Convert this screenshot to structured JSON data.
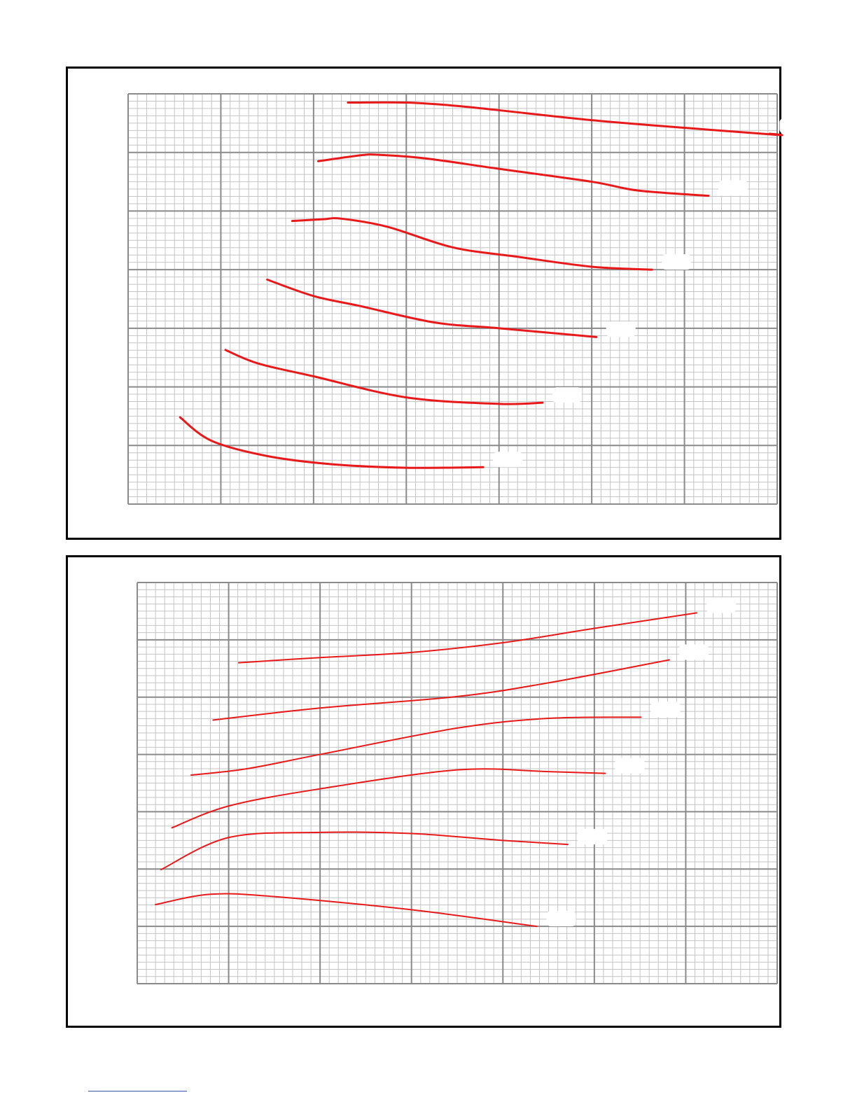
{
  "page": {
    "background": "#ffffff",
    "panel_border_color": "#000000",
    "grid_minor_color": "#c4c4c4",
    "grid_major_color": "#8a8a8a",
    "curve_color": "#e8191a",
    "footer_rule_color": "#3b4ea8"
  },
  "chart_data": [
    {
      "type": "line",
      "title": "",
      "xlabel": "",
      "ylabel": "",
      "xlim": [
        0,
        70
      ],
      "ylim": [
        0,
        7
      ],
      "x_major_step": 10,
      "y_major_step": 1,
      "minor_divisions_x": 10,
      "minor_divisions_y": 8,
      "grid": true,
      "series": [
        {
          "label": "",
          "x": [
            23.7,
            30,
            35,
            40,
            50,
            60,
            70,
            69.2
          ],
          "y": [
            6.85,
            6.85,
            6.8,
            6.72,
            6.55,
            6.42,
            6.3,
            6.32
          ]
        },
        {
          "label": "",
          "x": [
            20.5,
            25,
            27,
            32,
            40,
            50,
            55,
            62.6
          ],
          "y": [
            5.85,
            5.95,
            5.96,
            5.9,
            5.72,
            5.5,
            5.35,
            5.26
          ]
        },
        {
          "label": "",
          "x": [
            17.7,
            21,
            23,
            28,
            35,
            42,
            50,
            56.5
          ],
          "y": [
            4.83,
            4.86,
            4.87,
            4.73,
            4.38,
            4.22,
            4.05,
            4.0
          ]
        },
        {
          "label": "",
          "x": [
            15.0,
            20,
            25,
            33,
            40,
            50.5
          ],
          "y": [
            3.83,
            3.55,
            3.38,
            3.1,
            3.0,
            2.85
          ]
        },
        {
          "label": "",
          "x": [
            10.5,
            14,
            20,
            30,
            40,
            44.7
          ],
          "y": [
            2.63,
            2.4,
            2.18,
            1.82,
            1.71,
            1.73
          ]
        },
        {
          "label": "",
          "x": [
            5.6,
            9,
            15,
            22,
            30,
            38.3
          ],
          "y": [
            1.48,
            1.08,
            0.82,
            0.68,
            0.62,
            0.63
          ]
        }
      ]
    },
    {
      "type": "line",
      "title": "",
      "xlabel": "",
      "ylabel": "",
      "xlim": [
        0,
        70
      ],
      "ylim": [
        0,
        7
      ],
      "x_major_step": 10,
      "y_major_step": 1,
      "minor_divisions_x": 10,
      "minor_divisions_y": 8,
      "grid": true,
      "series": [
        {
          "label": "",
          "x": [
            11.1,
            20,
            30,
            40,
            50,
            61.2
          ],
          "y": [
            5.6,
            5.69,
            5.78,
            5.95,
            6.2,
            6.47
          ]
        },
        {
          "label": "",
          "x": [
            8.3,
            20,
            35,
            45,
            58.2
          ],
          "y": [
            4.6,
            4.81,
            5.01,
            5.25,
            5.65
          ]
        },
        {
          "label": "",
          "x": [
            5.9,
            12,
            20,
            35,
            45,
            55.1
          ],
          "y": [
            3.64,
            3.75,
            4.0,
            4.46,
            4.63,
            4.65
          ]
        },
        {
          "label": "",
          "x": [
            3.8,
            10,
            20,
            35,
            45,
            51.2
          ],
          "y": [
            2.72,
            3.1,
            3.4,
            3.73,
            3.7,
            3.67
          ]
        },
        {
          "label": "",
          "x": [
            2.6,
            10,
            20,
            30,
            40,
            47.1
          ],
          "y": [
            1.99,
            2.55,
            2.64,
            2.62,
            2.5,
            2.43
          ]
        },
        {
          "label": "",
          "x": [
            2.0,
            8,
            15,
            30,
            43.7
          ],
          "y": [
            1.38,
            1.56,
            1.52,
            1.29,
            1.0
          ]
        }
      ]
    }
  ]
}
